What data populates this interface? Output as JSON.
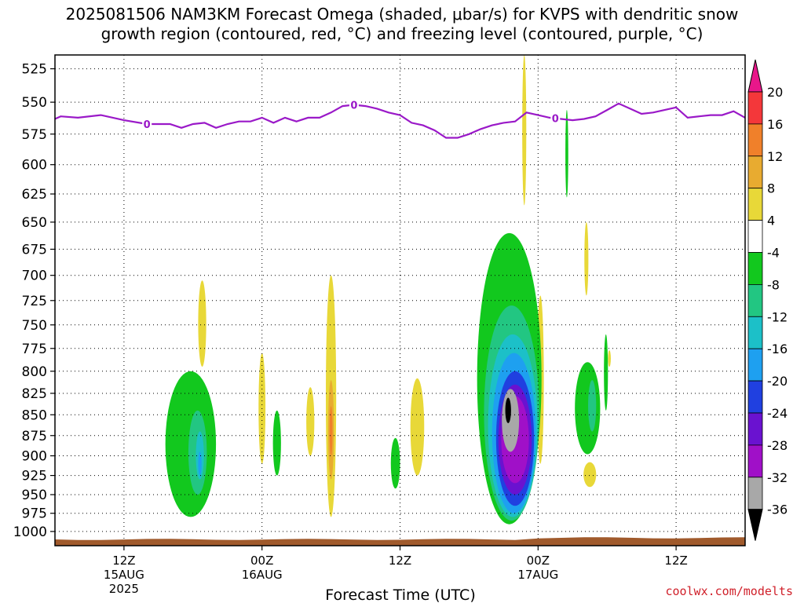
{
  "title_line1": "2025081506 NAM3KM Forecast Omega (shaded, μbar/s) for KVPS with dendritic snow",
  "title_line2": "growth region (contoured, red, °C) and freezing level (contoured, purple, °C)",
  "credit": "coolwx.com/modelts",
  "chart_data": {
    "type": "heatmap",
    "title": "2025081506 NAM3KM Forecast Omega (shaded, μbar/s) for KVPS with dendritic snow growth region (contoured, red, °C) and freezing level (contoured, purple, °C)",
    "xlabel": "Forecast Time (UTC)",
    "ylabel": "",
    "y_ticks": [
      525,
      550,
      575,
      600,
      625,
      650,
      675,
      700,
      725,
      750,
      775,
      800,
      825,
      850,
      875,
      900,
      925,
      950,
      975,
      1000
    ],
    "y_range_hPa": [
      515,
      1020
    ],
    "x_range_hours_from_init": [
      0,
      60
    ],
    "x_ticks": [
      {
        "hour": 6,
        "label": "12Z",
        "sub1": "15AUG",
        "sub2": "2025"
      },
      {
        "hour": 18,
        "label": "00Z",
        "sub1": "16AUG",
        "sub2": ""
      },
      {
        "hour": 30,
        "label": "12Z",
        "sub1": "",
        "sub2": ""
      },
      {
        "hour": 42,
        "label": "00Z",
        "sub1": "17AUG",
        "sub2": ""
      },
      {
        "hour": 54,
        "label": "12Z",
        "sub1": "",
        "sub2": ""
      }
    ],
    "colorbar": {
      "levels": [
        20,
        16,
        12,
        8,
        4,
        -4,
        -8,
        -12,
        -16,
        -20,
        -24,
        -28,
        -32,
        -36
      ],
      "colors": [
        "#e8178a",
        "#f4373a",
        "#f0802a",
        "#e8ab30",
        "#e8d838",
        "#ffffff",
        "#12c81e",
        "#22c682",
        "#1cc0c8",
        "#1ea0f0",
        "#2040e0",
        "#6a12d0",
        "#a010c8",
        "#a8a8a8",
        "#000000"
      ]
    },
    "freezing_level": {
      "label": "0",
      "points": [
        [
          0,
          563
        ],
        [
          0.5,
          561
        ],
        [
          2,
          562
        ],
        [
          4,
          560
        ],
        [
          6,
          564
        ],
        [
          8,
          567
        ],
        [
          10,
          567
        ],
        [
          11,
          570
        ],
        [
          12,
          567
        ],
        [
          13,
          566
        ],
        [
          14,
          570
        ],
        [
          15,
          567
        ],
        [
          16,
          565
        ],
        [
          17,
          565
        ],
        [
          18,
          562
        ],
        [
          19,
          566
        ],
        [
          20,
          562
        ],
        [
          21,
          565
        ],
        [
          22,
          562
        ],
        [
          23,
          562
        ],
        [
          24,
          558
        ],
        [
          25,
          553
        ],
        [
          26,
          552
        ],
        [
          27,
          553
        ],
        [
          28,
          555
        ],
        [
          29,
          558
        ],
        [
          30,
          560
        ],
        [
          31,
          566
        ],
        [
          32,
          568
        ],
        [
          33,
          572
        ],
        [
          34,
          578
        ],
        [
          35,
          578
        ],
        [
          36,
          575
        ],
        [
          37,
          571
        ],
        [
          38,
          568
        ],
        [
          39,
          566
        ],
        [
          40,
          565
        ],
        [
          41,
          558
        ],
        [
          42,
          560
        ],
        [
          43,
          562
        ],
        [
          44,
          563
        ],
        [
          45,
          564
        ],
        [
          46,
          563
        ],
        [
          47,
          561
        ],
        [
          48,
          556
        ],
        [
          49,
          551
        ],
        [
          50,
          555
        ],
        [
          51,
          559
        ],
        [
          52,
          558
        ],
        [
          53,
          556
        ],
        [
          54,
          554
        ],
        [
          55,
          562
        ],
        [
          56,
          561
        ],
        [
          57,
          560
        ],
        [
          58,
          560
        ],
        [
          59,
          557
        ],
        [
          60,
          562
        ]
      ],
      "label_hours": [
        8,
        26,
        43.5
      ]
    },
    "omega_features": [
      {
        "hour": 12.8,
        "top": 705,
        "bottom": 795,
        "width_h": 0.7,
        "color_index": 4
      },
      {
        "hour": 18,
        "top": 780,
        "bottom": 910,
        "width_h": 0.6,
        "color_index": 4
      },
      {
        "hour": 22.2,
        "top": 818,
        "bottom": 900,
        "width_h": 0.7,
        "color_index": 4
      },
      {
        "hour": 24,
        "top": 700,
        "bottom": 980,
        "width_h": 0.9,
        "color_index": 4
      },
      {
        "hour": 24,
        "top": 810,
        "bottom": 930,
        "width_h": 0.5,
        "color_index": 3
      },
      {
        "hour": 24,
        "top": 840,
        "bottom": 900,
        "width_h": 0.25,
        "color_index": 2
      },
      {
        "hour": 31.5,
        "top": 808,
        "bottom": 925,
        "width_h": 1.2,
        "color_index": 4
      },
      {
        "hour": 40.8,
        "top": 515,
        "bottom": 635,
        "width_h": 0.35,
        "color_index": 4
      },
      {
        "hour": 42.2,
        "top": 720,
        "bottom": 910,
        "width_h": 0.6,
        "color_index": 4
      },
      {
        "hour": 46.2,
        "top": 650,
        "bottom": 720,
        "width_h": 0.35,
        "color_index": 4
      },
      {
        "hour": 46.5,
        "top": 908,
        "bottom": 940,
        "width_h": 1.1,
        "color_index": 4
      },
      {
        "hour": 48.2,
        "top": 777,
        "bottom": 795,
        "width_h": 0.25,
        "color_index": 4
      },
      {
        "hour": 11.8,
        "top": 800,
        "bottom": 980,
        "width_h": 4.4,
        "color_index": 6
      },
      {
        "hour": 12.4,
        "top": 845,
        "bottom": 950,
        "width_h": 1.6,
        "color_index": 7
      },
      {
        "hour": 12.6,
        "top": 870,
        "bottom": 930,
        "width_h": 0.7,
        "color_index": 8
      },
      {
        "hour": 12.6,
        "top": 895,
        "bottom": 925,
        "width_h": 0.3,
        "color_index": 9
      },
      {
        "hour": 19.3,
        "top": 845,
        "bottom": 925,
        "width_h": 0.7,
        "color_index": 6
      },
      {
        "hour": 29.6,
        "top": 878,
        "bottom": 942,
        "width_h": 0.8,
        "color_index": 6
      },
      {
        "hour": 44.5,
        "top": 556,
        "bottom": 628,
        "width_h": 0.25,
        "color_index": 6
      },
      {
        "hour": 46.3,
        "top": 790,
        "bottom": 898,
        "width_h": 2.2,
        "color_index": 6
      },
      {
        "hour": 46.7,
        "top": 810,
        "bottom": 870,
        "width_h": 0.7,
        "color_index": 7
      },
      {
        "hour": 47.9,
        "top": 760,
        "bottom": 845,
        "width_h": 0.35,
        "color_index": 6
      },
      {
        "hour": 39.5,
        "top": 660,
        "bottom": 990,
        "width_h": 5.6,
        "color_index": 6
      },
      {
        "hour": 39.7,
        "top": 730,
        "bottom": 985,
        "width_h": 4.8,
        "color_index": 7
      },
      {
        "hour": 39.8,
        "top": 760,
        "bottom": 980,
        "width_h": 4.3,
        "color_index": 8
      },
      {
        "hour": 39.9,
        "top": 780,
        "bottom": 975,
        "width_h": 3.8,
        "color_index": 9
      },
      {
        "hour": 40.0,
        "top": 800,
        "bottom": 965,
        "width_h": 3.3,
        "color_index": 10
      },
      {
        "hour": 40.0,
        "top": 815,
        "bottom": 950,
        "width_h": 2.9,
        "color_index": 11
      },
      {
        "hour": 40.0,
        "top": 828,
        "bottom": 935,
        "width_h": 2.4,
        "color_index": 12
      },
      {
        "hour": 39.6,
        "top": 820,
        "bottom": 895,
        "width_h": 1.5,
        "color_index": 13
      },
      {
        "hour": 39.4,
        "top": 830,
        "bottom": 860,
        "width_h": 0.5,
        "color_index": 14
      }
    ]
  }
}
